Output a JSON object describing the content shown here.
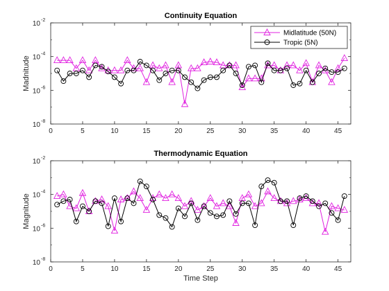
{
  "chart_data": [
    {
      "type": "line",
      "title": "Continuity Equation",
      "xlabel": "",
      "ylabel": "Madnitude",
      "yscale": "log",
      "xlim": [
        0,
        47
      ],
      "ylim": [
        1e-08,
        0.01
      ],
      "xticks": [
        "0",
        "5",
        "10",
        "15",
        "20",
        "25",
        "30",
        "35",
        "40",
        "45"
      ],
      "yticks": [
        {
          "base": "10",
          "exp": "-8"
        },
        {
          "base": "10",
          "exp": "-6"
        },
        {
          "base": "10",
          "exp": "-4"
        },
        {
          "base": "10",
          "exp": "-2"
        }
      ],
      "grid": false,
      "legend_position": "top-right",
      "x": [
        1,
        2,
        3,
        4,
        5,
        6,
        7,
        8,
        9,
        10,
        11,
        12,
        13,
        14,
        15,
        16,
        17,
        18,
        19,
        20,
        21,
        22,
        23,
        24,
        25,
        26,
        27,
        28,
        29,
        30,
        31,
        32,
        33,
        34,
        35,
        36,
        37,
        38,
        39,
        40,
        41,
        42,
        43,
        44,
        45,
        46
      ],
      "series": [
        {
          "name": "Midlatitude (50N)",
          "color": "#e020e0",
          "marker": "triangle",
          "values": [
            6e-05,
            6e-05,
            6e-05,
            2e-05,
            6e-05,
            1.5e-05,
            6e-05,
            2e-05,
            1.5e-05,
            1.5e-05,
            1.5e-05,
            6e-05,
            2e-05,
            2e-05,
            3e-06,
            3e-05,
            2e-05,
            3e-05,
            3e-06,
            3e-05,
            1.5e-07,
            2e-05,
            2e-05,
            4.5e-05,
            5e-05,
            4.5e-05,
            3e-05,
            3e-05,
            3e-05,
            1.5e-06,
            5e-06,
            5e-06,
            5e-06,
            3e-05,
            3e-05,
            1.5e-05,
            3e-05,
            3e-05,
            1.5e-05,
            4e-05,
            3e-06,
            3e-05,
            1.5e-05,
            3e-06,
            2e-05,
            8e-05
          ]
        },
        {
          "name": "Tropic (5N)",
          "color": "#000000",
          "marker": "circle",
          "values": [
            1.5e-05,
            3.5e-06,
            1e-05,
            1e-05,
            1.5e-05,
            6e-06,
            3e-05,
            2.5e-05,
            1.3e-05,
            6e-06,
            2.5e-06,
            1.5e-05,
            1.5e-05,
            5e-05,
            3e-05,
            1.5e-05,
            4e-06,
            1e-05,
            1.5e-05,
            1.5e-05,
            6e-06,
            3e-06,
            1.3e-06,
            4e-06,
            6e-06,
            6e-06,
            1.5e-05,
            3e-05,
            1e-05,
            2e-06,
            2.5e-05,
            3e-05,
            3e-06,
            4e-05,
            1.5e-05,
            1.5e-05,
            2e-05,
            2e-06,
            2.5e-06,
            1.5e-05,
            3e-06,
            1e-05,
            2e-05,
            1.2e-05,
            1.2e-05,
            2e-05
          ]
        }
      ]
    },
    {
      "type": "line",
      "title": "Thermodynamic Equation",
      "xlabel": "Time Step",
      "ylabel": "Magnitude",
      "yscale": "log",
      "xlim": [
        0,
        47
      ],
      "ylim": [
        1e-08,
        0.01
      ],
      "xticks": [
        "0",
        "5",
        "10",
        "15",
        "20",
        "25",
        "30",
        "35",
        "40",
        "45"
      ],
      "yticks": [
        {
          "base": "10",
          "exp": "-8"
        },
        {
          "base": "10",
          "exp": "-6"
        },
        {
          "base": "10",
          "exp": "-4"
        },
        {
          "base": "10",
          "exp": "-2"
        }
      ],
      "grid": false,
      "x": [
        1,
        2,
        3,
        4,
        5,
        6,
        7,
        8,
        9,
        10,
        11,
        12,
        13,
        14,
        15,
        16,
        17,
        18,
        19,
        20,
        21,
        22,
        23,
        24,
        25,
        26,
        27,
        28,
        29,
        30,
        31,
        32,
        33,
        34,
        35,
        36,
        37,
        38,
        39,
        40,
        41,
        42,
        43,
        44,
        45,
        46
      ],
      "series": [
        {
          "name": "Midlatitude (50N)",
          "color": "#e020e0",
          "marker": "triangle",
          "values": [
            8e-05,
            0.0001,
            2e-05,
            1.5e-05,
            0.00012,
            1e-05,
            4e-05,
            5e-05,
            2e-05,
            7e-07,
            5e-05,
            6e-05,
            0.00015,
            6e-05,
            1.2e-05,
            6e-05,
            0.0001,
            6e-05,
            0.0001,
            6e-05,
            2e-05,
            4e-05,
            1.2e-05,
            2e-05,
            6e-05,
            2e-05,
            3e-05,
            2e-05,
            2e-06,
            6e-05,
            0.0001,
            2e-05,
            3e-05,
            0.00015,
            6e-05,
            4e-05,
            3e-05,
            4e-05,
            5e-05,
            6e-05,
            3e-05,
            3e-05,
            6e-07,
            2e-05,
            1.5e-05,
            1.2e-05
          ]
        },
        {
          "name": "Tropic (5N)",
          "color": "#000000",
          "marker": "circle",
          "values": [
            2.5e-05,
            4e-05,
            5e-05,
            2.5e-06,
            2e-05,
            1e-05,
            4e-05,
            3e-05,
            1.3e-06,
            6e-05,
            2.5e-06,
            6e-05,
            3e-05,
            0.0006,
            0.0003,
            5e-05,
            6e-06,
            4e-06,
            1.2e-06,
            1.5e-05,
            5e-06,
            3e-05,
            3e-06,
            2e-05,
            8e-06,
            5e-06,
            6e-06,
            4e-05,
            7e-06,
            3e-05,
            3e-05,
            1.5e-06,
            0.0003,
            0.0007,
            0.0005,
            4e-05,
            4e-05,
            1.5e-06,
            6e-05,
            8e-05,
            4e-05,
            2e-05,
            3e-05,
            8e-06,
            3e-06,
            8e-05
          ]
        }
      ]
    }
  ]
}
